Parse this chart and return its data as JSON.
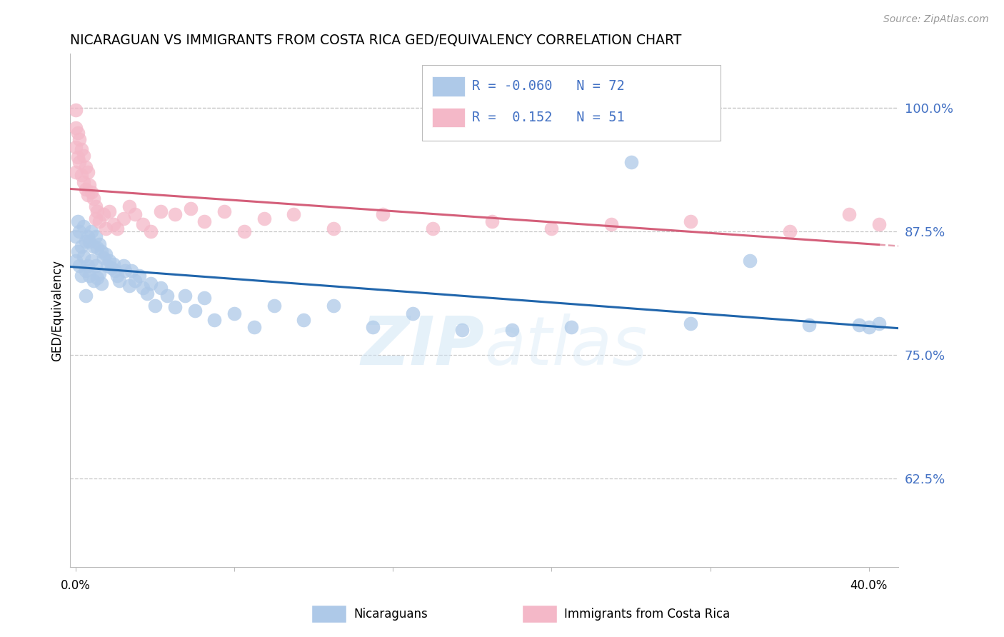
{
  "title": "NICARAGUAN VS IMMIGRANTS FROM COSTA RICA GED/EQUIVALENCY CORRELATION CHART",
  "source": "Source: ZipAtlas.com",
  "ylabel": "GED/Equivalency",
  "ytick_values": [
    1.0,
    0.875,
    0.75,
    0.625
  ],
  "ytick_labels": [
    "100.0%",
    "87.5%",
    "75.0%",
    "62.5%"
  ],
  "ylim": [
    0.535,
    1.055
  ],
  "xlim": [
    -0.003,
    0.415
  ],
  "R_blue": -0.06,
  "N_blue": 72,
  "R_pink": 0.152,
  "N_pink": 51,
  "legend_label_blue": "Nicaraguans",
  "legend_label_pink": "Immigrants from Costa Rica",
  "color_blue": "#aec9e8",
  "color_pink": "#f4b8c8",
  "line_color_blue": "#2166ac",
  "line_color_pink": "#d45f7a",
  "text_color": "#4472c4",
  "watermark_color": "#cde4f5",
  "blue_x": [
    0.0,
    0.0,
    0.001,
    0.001,
    0.002,
    0.002,
    0.003,
    0.003,
    0.004,
    0.004,
    0.005,
    0.005,
    0.005,
    0.006,
    0.006,
    0.007,
    0.007,
    0.008,
    0.008,
    0.009,
    0.009,
    0.01,
    0.01,
    0.011,
    0.011,
    0.012,
    0.012,
    0.013,
    0.013,
    0.014,
    0.015,
    0.016,
    0.017,
    0.018,
    0.019,
    0.02,
    0.021,
    0.022,
    0.024,
    0.025,
    0.027,
    0.028,
    0.03,
    0.032,
    0.034,
    0.036,
    0.038,
    0.04,
    0.043,
    0.046,
    0.05,
    0.055,
    0.06,
    0.065,
    0.07,
    0.08,
    0.09,
    0.1,
    0.115,
    0.13,
    0.15,
    0.17,
    0.195,
    0.22,
    0.25,
    0.28,
    0.31,
    0.34,
    0.37,
    0.395,
    0.4,
    0.405
  ],
  "blue_y": [
    0.87,
    0.845,
    0.885,
    0.855,
    0.875,
    0.84,
    0.86,
    0.83,
    0.88,
    0.85,
    0.865,
    0.835,
    0.81,
    0.87,
    0.84,
    0.865,
    0.83,
    0.875,
    0.845,
    0.86,
    0.825,
    0.87,
    0.84,
    0.858,
    0.828,
    0.862,
    0.832,
    0.855,
    0.822,
    0.848,
    0.852,
    0.84,
    0.845,
    0.838,
    0.842,
    0.835,
    0.83,
    0.825,
    0.84,
    0.835,
    0.82,
    0.835,
    0.825,
    0.83,
    0.818,
    0.812,
    0.822,
    0.8,
    0.818,
    0.81,
    0.798,
    0.81,
    0.795,
    0.808,
    0.785,
    0.792,
    0.778,
    0.8,
    0.785,
    0.8,
    0.778,
    0.792,
    0.775,
    0.775,
    0.778,
    0.945,
    0.782,
    0.845,
    0.78,
    0.78,
    0.778,
    0.782
  ],
  "pink_x": [
    0.0,
    0.0,
    0.0,
    0.0,
    0.001,
    0.001,
    0.002,
    0.002,
    0.003,
    0.003,
    0.004,
    0.004,
    0.005,
    0.005,
    0.006,
    0.006,
    0.007,
    0.008,
    0.009,
    0.01,
    0.01,
    0.011,
    0.012,
    0.014,
    0.015,
    0.017,
    0.019,
    0.021,
    0.024,
    0.027,
    0.03,
    0.034,
    0.038,
    0.043,
    0.05,
    0.058,
    0.065,
    0.075,
    0.085,
    0.095,
    0.11,
    0.13,
    0.155,
    0.18,
    0.21,
    0.24,
    0.27,
    0.31,
    0.36,
    0.39,
    0.405
  ],
  "pink_y": [
    0.998,
    0.98,
    0.96,
    0.935,
    0.975,
    0.95,
    0.968,
    0.945,
    0.958,
    0.932,
    0.952,
    0.925,
    0.94,
    0.918,
    0.935,
    0.912,
    0.922,
    0.915,
    0.908,
    0.9,
    0.888,
    0.895,
    0.885,
    0.892,
    0.878,
    0.895,
    0.882,
    0.878,
    0.888,
    0.9,
    0.892,
    0.882,
    0.875,
    0.895,
    0.892,
    0.898,
    0.885,
    0.895,
    0.875,
    0.888,
    0.892,
    0.878,
    0.892,
    0.878,
    0.885,
    0.878,
    0.882,
    0.885,
    0.875,
    0.892,
    0.882
  ]
}
